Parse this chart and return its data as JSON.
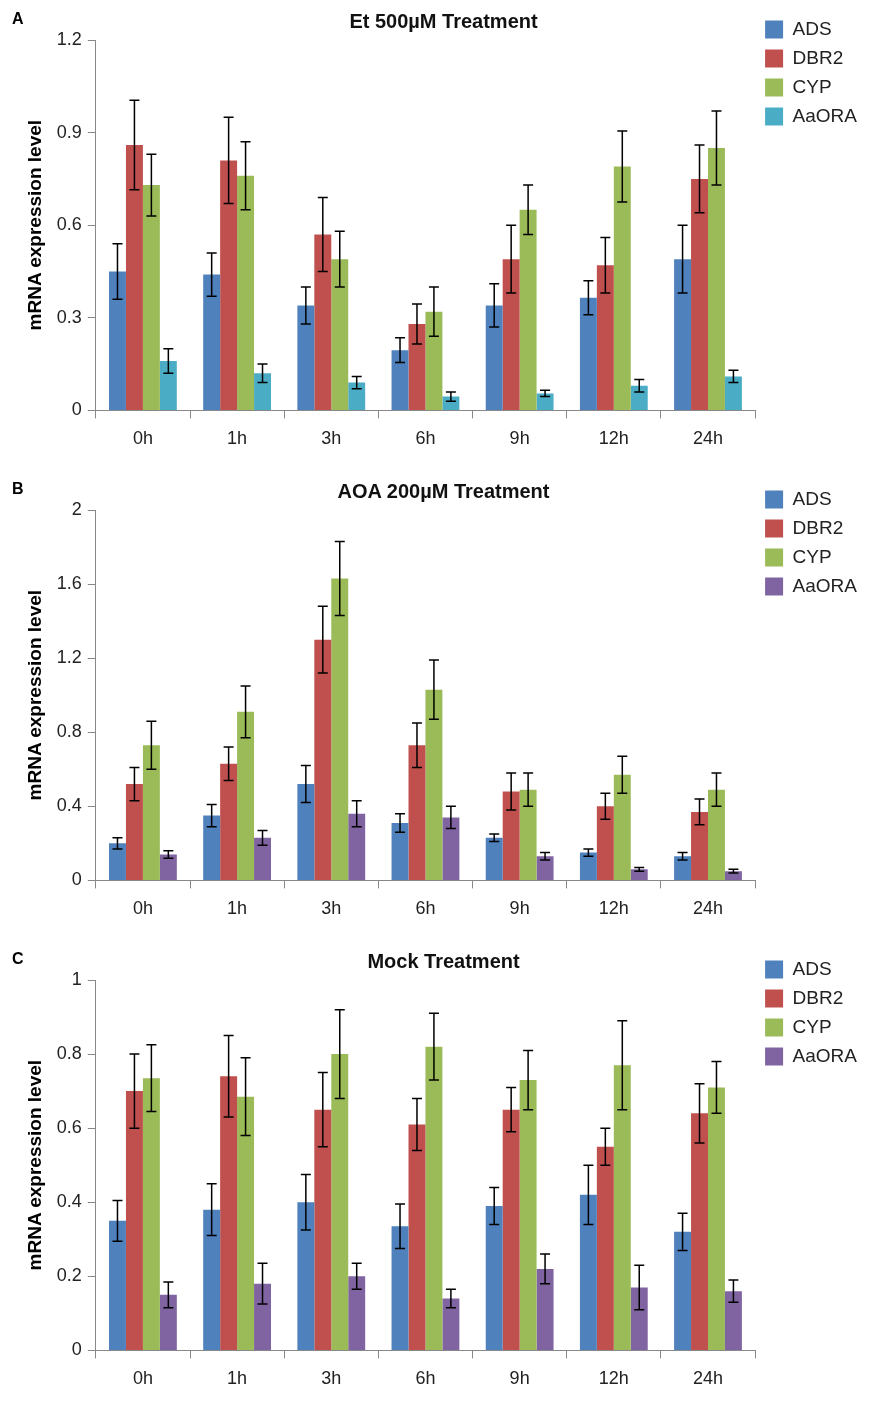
{
  "chart_data": [
    {
      "type": "bar",
      "title": "Et 500µM Treatment",
      "ylabel": "mRNA expression level",
      "annotations": [
        "A"
      ],
      "categories": [
        "0h",
        "1h",
        "3h",
        "6h",
        "9h",
        "12h",
        "24h"
      ],
      "ylim": [
        0,
        1.2
      ],
      "yticks": [
        0,
        0.3,
        0.6,
        0.9,
        1.2
      ],
      "grid": false,
      "legend": "top right",
      "series": [
        {
          "name": "ADS",
          "color": "#4f81bd",
          "values": [
            0.45,
            0.44,
            0.34,
            0.195,
            0.34,
            0.365,
            0.49
          ],
          "errors": [
            0.09,
            0.07,
            0.06,
            0.04,
            0.07,
            0.055,
            0.11
          ]
        },
        {
          "name": "DBR2",
          "color": "#c0504d",
          "values": [
            0.86,
            0.81,
            0.57,
            0.28,
            0.49,
            0.47,
            0.75
          ],
          "errors": [
            0.145,
            0.14,
            0.12,
            0.065,
            0.11,
            0.09,
            0.11
          ]
        },
        {
          "name": "CYP",
          "color": "#9bbb59",
          "values": [
            0.73,
            0.76,
            0.49,
            0.32,
            0.65,
            0.79,
            0.85
          ],
          "errors": [
            0.1,
            0.11,
            0.09,
            0.08,
            0.08,
            0.115,
            0.12
          ]
        },
        {
          "name": "AaORA",
          "color": "#4bacc6",
          "values": [
            0.16,
            0.12,
            0.09,
            0.045,
            0.055,
            0.08,
            0.11
          ],
          "errors": [
            0.04,
            0.03,
            0.02,
            0.015,
            0.01,
            0.02,
            0.02
          ]
        }
      ]
    },
    {
      "type": "bar",
      "title": "AOA 200µM Treatment",
      "ylabel": "mRNA expression level",
      "annotations": [
        "B"
      ],
      "categories": [
        "0h",
        "1h",
        "3h",
        "6h",
        "9h",
        "12h",
        "24h"
      ],
      "ylim": [
        0,
        2
      ],
      "yticks": [
        0,
        0.4,
        0.8,
        1.2,
        1.6,
        2
      ],
      "grid": false,
      "legend": "top right",
      "series": [
        {
          "name": "ADS",
          "color": "#4f81bd",
          "values": [
            0.2,
            0.35,
            0.52,
            0.31,
            0.23,
            0.15,
            0.13
          ],
          "errors": [
            0.03,
            0.06,
            0.1,
            0.05,
            0.02,
            0.02,
            0.02
          ]
        },
        {
          "name": "DBR2",
          "color": "#c0504d",
          "values": [
            0.52,
            0.63,
            1.3,
            0.73,
            0.48,
            0.4,
            0.37
          ],
          "errors": [
            0.09,
            0.09,
            0.18,
            0.12,
            0.1,
            0.07,
            0.07
          ]
        },
        {
          "name": "CYP",
          "color": "#9bbb59",
          "values": [
            0.73,
            0.91,
            1.63,
            1.03,
            0.49,
            0.57,
            0.49
          ],
          "errors": [
            0.13,
            0.14,
            0.2,
            0.16,
            0.09,
            0.1,
            0.09
          ]
        },
        {
          "name": "AaORA",
          "color": "#8064a2",
          "values": [
            0.14,
            0.23,
            0.36,
            0.34,
            0.13,
            0.06,
            0.05
          ],
          "errors": [
            0.02,
            0.04,
            0.07,
            0.06,
            0.02,
            0.01,
            0.01
          ]
        }
      ]
    },
    {
      "type": "bar",
      "title": "Mock Treatment",
      "ylabel": "mRNA expression level",
      "annotations": [
        "C"
      ],
      "categories": [
        "0h",
        "1h",
        "3h",
        "6h",
        "9h",
        "12h",
        "24h"
      ],
      "ylim": [
        0,
        1
      ],
      "yticks": [
        0,
        0.2,
        0.4,
        0.6,
        0.8,
        1
      ],
      "grid": false,
      "legend": "top right",
      "series": [
        {
          "name": "ADS",
          "color": "#4f81bd",
          "values": [
            0.35,
            0.38,
            0.4,
            0.335,
            0.39,
            0.42,
            0.32
          ],
          "errors": [
            0.055,
            0.07,
            0.075,
            0.06,
            0.05,
            0.08,
            0.05
          ]
        },
        {
          "name": "DBR2",
          "color": "#c0504d",
          "values": [
            0.7,
            0.74,
            0.65,
            0.61,
            0.65,
            0.55,
            0.64
          ],
          "errors": [
            0.1,
            0.11,
            0.1,
            0.07,
            0.06,
            0.05,
            0.08
          ]
        },
        {
          "name": "CYP",
          "color": "#9bbb59",
          "values": [
            0.735,
            0.685,
            0.8,
            0.82,
            0.73,
            0.77,
            0.71
          ],
          "errors": [
            0.09,
            0.105,
            0.12,
            0.09,
            0.08,
            0.12,
            0.07
          ]
        },
        {
          "name": "AaORA",
          "color": "#8064a2",
          "values": [
            0.15,
            0.18,
            0.2,
            0.14,
            0.22,
            0.17,
            0.16
          ],
          "errors": [
            0.035,
            0.055,
            0.035,
            0.025,
            0.04,
            0.06,
            0.03
          ]
        }
      ]
    }
  ]
}
